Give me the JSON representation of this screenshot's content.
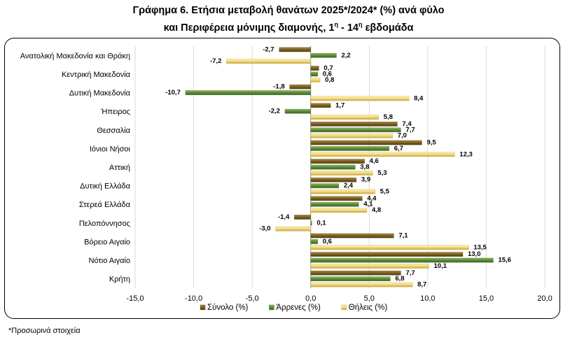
{
  "title_line1": "Γράφημα 6. Ετήσια μεταβολή θανάτων 2025*/2024* (%) ανά φύλο",
  "title_line2_pre": "και Περιφέρεια μόνιμης διαμονής, 1",
  "title_line2_sup1": "η",
  "title_line2_mid": " - 14",
  "title_line2_sup2": "η",
  "title_line2_post": " εβδομάδα",
  "footnote": "*Προσωρινά στοιχεία",
  "colors": {
    "total": "#7a5e22",
    "male": "#5c8a3a",
    "female": "#f0d878"
  },
  "chart_data": {
    "type": "bar",
    "orientation": "horizontal",
    "categories": [
      "Ανατολική Μακεδονία και Θράκη",
      "Κεντρική Μακεδονία",
      "Δυτική Μακεδονία",
      "Ήπειρος",
      "Θεσσαλία",
      "Ιόνιοι Νήσοι",
      "Αττική",
      "Δυτική Ελλάδα",
      "Στερεά Ελλάδα",
      "Πελοπόννησος",
      "Βόρειο Αιγαίο",
      "Νότιο Αιγαίο",
      "Κρήτη"
    ],
    "series": [
      {
        "name": "Σύνολο (%)",
        "values": [
          -2.7,
          0.7,
          -1.8,
          1.7,
          7.4,
          9.5,
          4.6,
          3.9,
          4.4,
          -1.4,
          7.1,
          13.0,
          7.7
        ]
      },
      {
        "name": "Άρρενες (%)",
        "values": [
          2.2,
          0.6,
          -10.7,
          -2.2,
          7.7,
          6.7,
          3.8,
          2.4,
          4.1,
          0.1,
          0.6,
          15.6,
          6.8
        ]
      },
      {
        "name": "Θήλεις (%)",
        "values": [
          -7.2,
          0.8,
          8.4,
          5.8,
          7.0,
          12.3,
          5.3,
          5.5,
          4.8,
          -3.0,
          13.5,
          10.1,
          8.7
        ]
      }
    ],
    "xlim": [
      -15,
      20
    ],
    "xticks": [
      -15,
      -10,
      -5,
      0,
      5,
      10,
      15,
      20
    ],
    "xtick_labels": [
      "-15,0",
      "-10,0",
      "-5,0",
      "0,0",
      "5,0",
      "10,0",
      "15,0",
      "20,0"
    ],
    "grid": "vertical",
    "legend": "bottom",
    "decimal_separator": ","
  }
}
